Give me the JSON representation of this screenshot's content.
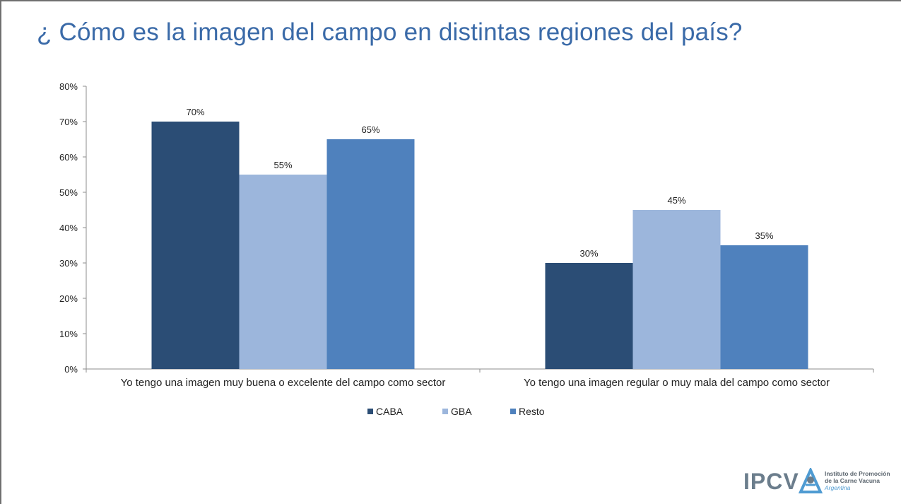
{
  "title": "¿ Cómo es la imagen del campo en distintas regiones del país?",
  "colors": {
    "CABA": "#2b4d75",
    "GBA": "#9cb6dc",
    "Resto": "#4f81bd",
    "title": "#3a6aa8"
  },
  "chart_data": {
    "type": "bar",
    "title": "¿ Cómo es la imagen del campo en distintas regiones del país?",
    "categories": [
      "Yo tengo una imagen muy buena o excelente del campo como sector",
      "Yo tengo una imagen regular o muy mala del campo como sector"
    ],
    "series": [
      {
        "name": "CABA",
        "values": [
          70,
          30
        ],
        "labels": [
          "70%",
          "30%"
        ]
      },
      {
        "name": "GBA",
        "values": [
          55,
          45
        ],
        "labels": [
          "55%",
          "45%"
        ]
      },
      {
        "name": "Resto",
        "values": [
          65,
          35
        ],
        "labels": [
          "65%",
          "35%"
        ]
      }
    ],
    "ylim": [
      0,
      80
    ],
    "yticks": [
      0,
      10,
      20,
      30,
      40,
      50,
      60,
      70,
      80
    ],
    "ytick_labels": [
      "0%",
      "10%",
      "20%",
      "30%",
      "40%",
      "50%",
      "60%",
      "70%",
      "80%"
    ],
    "xlabel": "",
    "ylabel": "",
    "legend_position": "bottom",
    "grid": false
  },
  "logo": {
    "mark": "IPCV",
    "line1": "Instituto de Promoción",
    "line2": "de la Carne Vacuna",
    "line3": "Argentina"
  }
}
